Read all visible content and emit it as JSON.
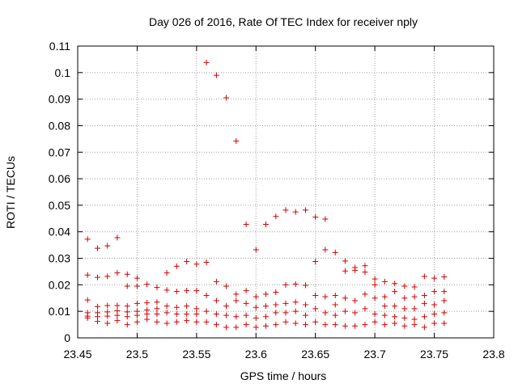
{
  "chart_data": {
    "type": "scatter",
    "title": "Day 026 of 2016, Rate Of TEC Index for receiver nply",
    "xlabel": "GPS time / hours",
    "ylabel": "ROTI / TECUs",
    "xlim": [
      23.45,
      23.8
    ],
    "ylim": [
      0,
      0.11
    ],
    "xticks": [
      23.45,
      23.5,
      23.55,
      23.6,
      23.65,
      23.7,
      23.75,
      23.8
    ],
    "xtick_labels": [
      "23.45",
      "23.5",
      "23.55",
      "23.6",
      "23.65",
      "23.7",
      "23.75",
      "23.8"
    ],
    "yticks": [
      0,
      0.01,
      0.02,
      0.03,
      0.04,
      0.05,
      0.06,
      0.07,
      0.08,
      0.09,
      0.1,
      0.11
    ],
    "ytick_labels": [
      "0",
      "0.01",
      "0.02",
      "0.03",
      "0.04",
      "0.05",
      "0.06",
      "0.07",
      "0.08",
      "0.09",
      "0.1",
      "0.11"
    ],
    "grid": true,
    "marker": "+",
    "colors": {
      "points": "#d40000",
      "grid": "#a0a0a0",
      "axis": "#000000"
    },
    "series": [
      {
        "name": "ROTI",
        "x": [
          23.4583,
          23.4583,
          23.4583,
          23.4583,
          23.4583,
          23.4583,
          23.4667,
          23.4667,
          23.4667,
          23.4667,
          23.4667,
          23.4667,
          23.475,
          23.475,
          23.475,
          23.475,
          23.475,
          23.475,
          23.4833,
          23.4833,
          23.4833,
          23.4833,
          23.4833,
          23.4833,
          23.4917,
          23.4917,
          23.4917,
          23.4917,
          23.4917,
          23.4917,
          23.5,
          23.5,
          23.5,
          23.5,
          23.5,
          23.5,
          23.5083,
          23.5083,
          23.5083,
          23.5083,
          23.5083,
          23.5167,
          23.5167,
          23.5167,
          23.5167,
          23.5167,
          23.525,
          23.525,
          23.525,
          23.525,
          23.525,
          23.5333,
          23.5333,
          23.5333,
          23.5333,
          23.5333,
          23.5417,
          23.5417,
          23.5417,
          23.5417,
          23.5417,
          23.55,
          23.55,
          23.55,
          23.55,
          23.55,
          23.5583,
          23.5583,
          23.5583,
          23.5583,
          23.5583,
          23.5667,
          23.5667,
          23.5667,
          23.5667,
          23.5667,
          23.575,
          23.575,
          23.575,
          23.575,
          23.575,
          23.5833,
          23.5833,
          23.5833,
          23.5833,
          23.5833,
          23.5917,
          23.5917,
          23.5917,
          23.5917,
          23.5917,
          23.6,
          23.6,
          23.6,
          23.6,
          23.6,
          23.6083,
          23.6083,
          23.6083,
          23.6083,
          23.6083,
          23.6167,
          23.6167,
          23.6167,
          23.6167,
          23.6167,
          23.625,
          23.625,
          23.625,
          23.625,
          23.625,
          23.6333,
          23.6333,
          23.6333,
          23.6333,
          23.6333,
          23.6417,
          23.6417,
          23.6417,
          23.6417,
          23.6417,
          23.65,
          23.65,
          23.65,
          23.65,
          23.65,
          23.6583,
          23.6583,
          23.6583,
          23.6583,
          23.6583,
          23.6667,
          23.6667,
          23.6667,
          23.6667,
          23.6667,
          23.675,
          23.675,
          23.675,
          23.675,
          23.675,
          23.6833,
          23.6833,
          23.6833,
          23.6833,
          23.6833,
          23.6917,
          23.6917,
          23.6917,
          23.6917,
          23.6917,
          23.7,
          23.7,
          23.7,
          23.7,
          23.7,
          23.7083,
          23.7083,
          23.7083,
          23.7083,
          23.7083,
          23.7167,
          23.7167,
          23.7167,
          23.7167,
          23.7167,
          23.725,
          23.725,
          23.725,
          23.725,
          23.725,
          23.7333,
          23.7333,
          23.7333,
          23.7333,
          23.7333,
          23.7417,
          23.7417,
          23.7417,
          23.7417,
          23.7417,
          23.75,
          23.75,
          23.75,
          23.75,
          23.75,
          23.7583,
          23.7583,
          23.7583,
          23.7583,
          23.7583
        ],
        "y": [
          0.0372,
          0.0237,
          0.0143,
          0.0095,
          0.0082,
          0.0075,
          0.0338,
          0.0228,
          0.0118,
          0.0095,
          0.008,
          0.0062,
          0.0347,
          0.0232,
          0.0122,
          0.0098,
          0.0082,
          0.0055,
          0.0378,
          0.0245,
          0.0122,
          0.0102,
          0.0085,
          0.0065,
          0.024,
          0.0195,
          0.012,
          0.0098,
          0.008,
          0.005,
          0.0225,
          0.0195,
          0.013,
          0.01,
          0.0085,
          0.006,
          0.0202,
          0.0132,
          0.0105,
          0.009,
          0.007,
          0.019,
          0.0135,
          0.011,
          0.009,
          0.006,
          0.0245,
          0.018,
          0.012,
          0.0095,
          0.0055,
          0.027,
          0.0175,
          0.0115,
          0.009,
          0.006,
          0.0288,
          0.0178,
          0.012,
          0.009,
          0.0065,
          0.0278,
          0.0178,
          0.011,
          0.009,
          0.006,
          0.1038,
          0.0285,
          0.016,
          0.01,
          0.006,
          0.099,
          0.0212,
          0.014,
          0.009,
          0.005,
          0.0905,
          0.0195,
          0.012,
          0.0085,
          0.004,
          0.0742,
          0.0165,
          0.014,
          0.008,
          0.004,
          0.0428,
          0.0178,
          0.013,
          0.0085,
          0.005,
          0.0332,
          0.0155,
          0.0115,
          0.0075,
          0.004,
          0.0428,
          0.0165,
          0.012,
          0.008,
          0.0045,
          0.0458,
          0.0172,
          0.0125,
          0.0095,
          0.005,
          0.0482,
          0.02,
          0.013,
          0.0095,
          0.006,
          0.0475,
          0.0203,
          0.0135,
          0.01,
          0.0055,
          0.0482,
          0.0198,
          0.0125,
          0.0085,
          0.005,
          0.0455,
          0.0288,
          0.016,
          0.011,
          0.006,
          0.0448,
          0.0332,
          0.0155,
          0.0095,
          0.005,
          0.0322,
          0.016,
          0.0125,
          0.0085,
          0.005,
          0.029,
          0.0252,
          0.015,
          0.01,
          0.0045,
          0.0265,
          0.0255,
          0.014,
          0.0095,
          0.0045,
          0.0272,
          0.0248,
          0.0165,
          0.011,
          0.005,
          0.0222,
          0.02,
          0.015,
          0.009,
          0.006,
          0.0212,
          0.0155,
          0.012,
          0.0085,
          0.005,
          0.0205,
          0.0175,
          0.012,
          0.008,
          0.0055,
          0.0195,
          0.015,
          0.011,
          0.0075,
          0.0045,
          0.0192,
          0.0155,
          0.011,
          0.007,
          0.005,
          0.0232,
          0.016,
          0.013,
          0.008,
          0.004,
          0.0225,
          0.0175,
          0.0125,
          0.009,
          0.0055,
          0.023,
          0.0175,
          0.014,
          0.0095,
          0.0055
        ]
      }
    ]
  }
}
